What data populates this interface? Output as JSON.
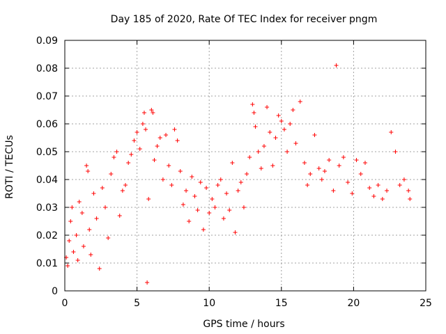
{
  "chart_data": {
    "type": "scatter",
    "title": "Day 185 of 2020, Rate Of TEC Index for receiver pngm",
    "xlabel": "GPS time / hours",
    "ylabel": "ROTI / TECUs",
    "xlim": [
      0,
      25
    ],
    "ylim": [
      0,
      0.09
    ],
    "x_ticks": [
      0,
      5,
      10,
      15,
      20,
      25
    ],
    "y_ticks": [
      0,
      0.01,
      0.02,
      0.03,
      0.04,
      0.05,
      0.06,
      0.07,
      0.08,
      0.09
    ],
    "x_tick_labels": [
      "0",
      "5",
      "10",
      "15",
      "20",
      "25"
    ],
    "y_tick_labels": [
      "0",
      "0.01",
      "0.02",
      "0.03",
      "0.04",
      "0.05",
      "0.06",
      "0.07",
      "0.08",
      "0.09"
    ],
    "grid": true,
    "marker": "+",
    "series_color": "#ff0000",
    "series": [
      {
        "name": "ROTI",
        "points": [
          [
            0.1,
            0.012
          ],
          [
            0.2,
            0.009
          ],
          [
            0.3,
            0.018
          ],
          [
            0.4,
            0.025
          ],
          [
            0.5,
            0.03
          ],
          [
            0.6,
            0.014
          ],
          [
            0.8,
            0.02
          ],
          [
            0.9,
            0.011
          ],
          [
            1.0,
            0.032
          ],
          [
            1.2,
            0.028
          ],
          [
            1.3,
            0.016
          ],
          [
            1.5,
            0.045
          ],
          [
            1.6,
            0.043
          ],
          [
            1.7,
            0.022
          ],
          [
            1.8,
            0.013
          ],
          [
            2.0,
            0.035
          ],
          [
            2.2,
            0.026
          ],
          [
            2.4,
            0.008
          ],
          [
            2.6,
            0.037
          ],
          [
            2.8,
            0.03
          ],
          [
            3.0,
            0.019
          ],
          [
            3.2,
            0.042
          ],
          [
            3.4,
            0.048
          ],
          [
            3.6,
            0.05
          ],
          [
            3.8,
            0.027
          ],
          [
            4.0,
            0.036
          ],
          [
            4.2,
            0.038
          ],
          [
            4.4,
            0.046
          ],
          [
            4.6,
            0.049
          ],
          [
            4.8,
            0.054
          ],
          [
            5.0,
            0.057
          ],
          [
            5.2,
            0.051
          ],
          [
            5.4,
            0.06
          ],
          [
            5.5,
            0.064
          ],
          [
            5.6,
            0.058
          ],
          [
            5.7,
            0.003
          ],
          [
            5.8,
            0.033
          ],
          [
            6.0,
            0.065
          ],
          [
            6.1,
            0.064
          ],
          [
            6.2,
            0.047
          ],
          [
            6.4,
            0.052
          ],
          [
            6.6,
            0.055
          ],
          [
            6.8,
            0.04
          ],
          [
            7.0,
            0.056
          ],
          [
            7.2,
            0.045
          ],
          [
            7.4,
            0.038
          ],
          [
            7.6,
            0.058
          ],
          [
            7.8,
            0.054
          ],
          [
            8.0,
            0.043
          ],
          [
            8.2,
            0.031
          ],
          [
            8.4,
            0.036
          ],
          [
            8.6,
            0.025
          ],
          [
            8.8,
            0.041
          ],
          [
            9.0,
            0.034
          ],
          [
            9.2,
            0.029
          ],
          [
            9.4,
            0.039
          ],
          [
            9.6,
            0.022
          ],
          [
            9.8,
            0.037
          ],
          [
            10.0,
            0.028
          ],
          [
            10.2,
            0.033
          ],
          [
            10.4,
            0.03
          ],
          [
            10.6,
            0.038
          ],
          [
            10.8,
            0.04
          ],
          [
            11.0,
            0.026
          ],
          [
            11.2,
            0.035
          ],
          [
            11.4,
            0.029
          ],
          [
            11.6,
            0.046
          ],
          [
            11.8,
            0.021
          ],
          [
            12.0,
            0.036
          ],
          [
            12.2,
            0.039
          ],
          [
            12.4,
            0.03
          ],
          [
            12.6,
            0.042
          ],
          [
            12.8,
            0.048
          ],
          [
            13.0,
            0.067
          ],
          [
            13.1,
            0.064
          ],
          [
            13.2,
            0.059
          ],
          [
            13.4,
            0.05
          ],
          [
            13.6,
            0.044
          ],
          [
            13.8,
            0.052
          ],
          [
            14.0,
            0.066
          ],
          [
            14.2,
            0.057
          ],
          [
            14.4,
            0.045
          ],
          [
            14.6,
            0.055
          ],
          [
            14.8,
            0.063
          ],
          [
            15.0,
            0.061
          ],
          [
            15.2,
            0.058
          ],
          [
            15.4,
            0.05
          ],
          [
            15.6,
            0.06
          ],
          [
            15.8,
            0.065
          ],
          [
            16.0,
            0.053
          ],
          [
            16.3,
            0.068
          ],
          [
            16.6,
            0.046
          ],
          [
            16.8,
            0.038
          ],
          [
            17.0,
            0.042
          ],
          [
            17.3,
            0.056
          ],
          [
            17.6,
            0.044
          ],
          [
            17.8,
            0.04
          ],
          [
            18.0,
            0.043
          ],
          [
            18.3,
            0.047
          ],
          [
            18.6,
            0.036
          ],
          [
            18.8,
            0.081
          ],
          [
            19.0,
            0.045
          ],
          [
            19.3,
            0.048
          ],
          [
            19.6,
            0.039
          ],
          [
            19.9,
            0.035
          ],
          [
            20.2,
            0.047
          ],
          [
            20.5,
            0.042
          ],
          [
            20.8,
            0.046
          ],
          [
            21.1,
            0.037
          ],
          [
            21.4,
            0.034
          ],
          [
            21.7,
            0.038
          ],
          [
            22.0,
            0.033
          ],
          [
            22.3,
            0.036
          ],
          [
            22.6,
            0.057
          ],
          [
            22.9,
            0.05
          ],
          [
            23.2,
            0.038
          ],
          [
            23.5,
            0.04
          ],
          [
            23.8,
            0.036
          ],
          [
            23.9,
            0.033
          ]
        ]
      }
    ]
  }
}
